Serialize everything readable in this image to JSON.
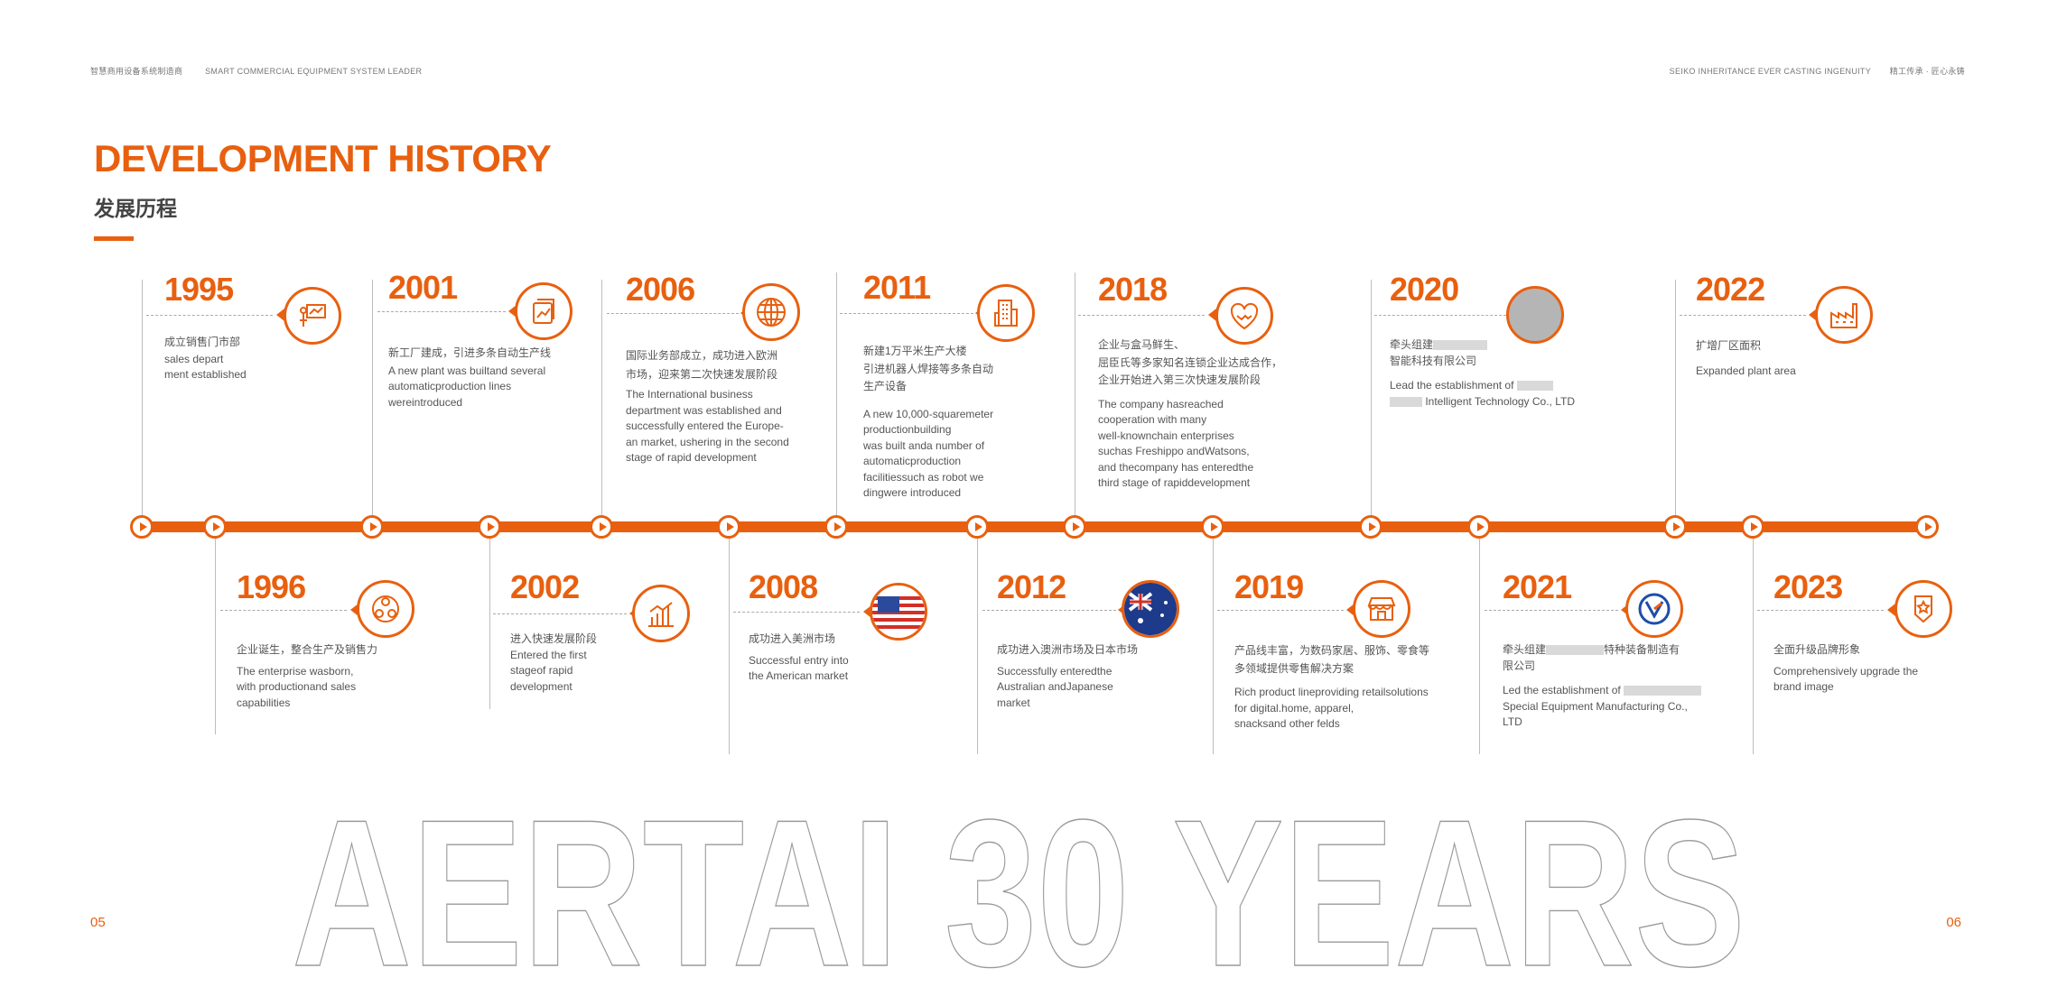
{
  "header": {
    "left_zh": "智慧商用设备系统制造商",
    "left_en": "SMART COMMERCIAL EQUIPMENT SYSTEM LEADER",
    "right_en": "SEIKO INHERITANCE EVER CASTING INGENUITY",
    "right_zh": "精工传承 · 匠心永铸"
  },
  "title": {
    "en": "DEVELOPMENT HISTORY",
    "zh": "发展历程"
  },
  "accent_color": "#e8600f",
  "milestones": [
    {
      "year": "1995",
      "zh": "成立销售门市部",
      "en": "sales depart\nment established",
      "icon": "presentation-icon"
    },
    {
      "year": "1996",
      "zh": "企业诞生，整合生产及销售力",
      "en": "The enterprise wasborn,\nwith productionand sales\ncapabilities",
      "icon": "network-icon"
    },
    {
      "year": "2001",
      "zh": "新工厂建成，引进多条自动生产线",
      "en": "A new plant was builtand several\nautomaticproduction lines\nwereintroduced",
      "icon": "chart-document-icon"
    },
    {
      "year": "2002",
      "zh": "进入快速发展阶段",
      "en": "Entered the first\nstageof rapid\ndevelopment",
      "icon": "growth-chart-icon"
    },
    {
      "year": "2006",
      "zh": "国际业务部成立，成功进入欧洲\n市场，迎来第二次快速发展阶段",
      "en": "The International business\ndepartment was established and\nsuccessfully entered the Europe-\nan market, ushering in the second\nstage of rapid development",
      "icon": "globe-icon"
    },
    {
      "year": "2008",
      "zh": "成功进入美洲市场",
      "en": "Successful entry into\nthe American market",
      "icon": "us-flag-icon"
    },
    {
      "year": "2011",
      "zh": "新建1万平米生产大楼\n引进机器人焊接等多条自动\n生产设备",
      "en": "A new 10,000-squaremeter\nproductionbuilding\nwas built anda number of\nautomaticproduction\nfacilitiessuch as robot we\ndingwere introduced",
      "icon": "building-icon"
    },
    {
      "year": "2012",
      "zh": "成功进入澳洲市场及日本市场",
      "en": "Successfully enteredthe\nAustralian andJapanese\nmarket",
      "icon": "australia-flag-icon"
    },
    {
      "year": "2018",
      "zh": "企业与盒马鲜生、\n屈臣氏等多家知名连锁企业达成合作，\n企业开始进入第三次快速发展阶段",
      "en": "The company hasreached\ncooperation with many\nwell-knownchain enterprises\nsuchas Freshippo andWatsons,\nand thecompany has enteredthe\nthird stage of rapiddevelopment",
      "icon": "handshake-icon"
    },
    {
      "year": "2019",
      "zh": "产品线丰富，为数码家居、服饰、零食等\n多领域提供零售解决方案",
      "en": "Rich product lineproviding retailsolutions\nfor digital.home, apparel,\nsnacksand other felds",
      "icon": "store-icon"
    },
    {
      "year": "2020",
      "zh_pre": "牵头组建",
      "zh_post": "智能科技有限公司",
      "en_pre": "Lead the establishment of",
      "en_post": "Intelligent Technology Co., LTD",
      "icon": "logo-placeholder-icon"
    },
    {
      "year": "2021",
      "zh_pre": "牵头组建",
      "zh_post": "特种装备制造有\n限公司",
      "en_pre": "Led the establishment of",
      "en_post": "Special Equipment Manufacturing Co.,\nLTD",
      "icon": "company-logo-icon"
    },
    {
      "year": "2022",
      "zh": "扩增厂区面积",
      "en": "Expanded plant area",
      "icon": "factory-icon"
    },
    {
      "year": "2023",
      "zh": "全面升级品牌形象",
      "en": "Comprehensively upgrade the\nbrand image",
      "icon": "brand-badge-icon"
    }
  ],
  "big_text": "AERTAI 30 YEARS",
  "page_left": "05",
  "page_right": "06"
}
